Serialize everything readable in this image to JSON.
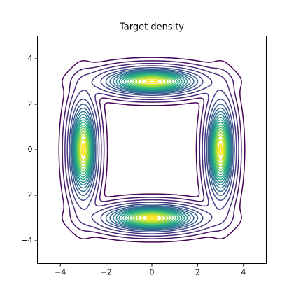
{
  "chart_data": {
    "type": "contour",
    "title": "Target density",
    "modes": {
      "x": [
        0,
        0,
        3,
        -3
      ],
      "y": [
        3,
        -3,
        0,
        0
      ]
    },
    "colormap": "viridis",
    "xlim": [
      -5,
      5
    ],
    "ylim": [
      -5,
      5
    ],
    "xticks": [
      {
        "value": -4,
        "label": "−4"
      },
      {
        "value": -2,
        "label": "−2"
      },
      0,
      2,
      4
    ],
    "yticks": [
      {
        "value": -4,
        "label": "−4"
      },
      {
        "value": -2,
        "label": "−2"
      },
      0,
      2,
      4
    ]
  }
}
